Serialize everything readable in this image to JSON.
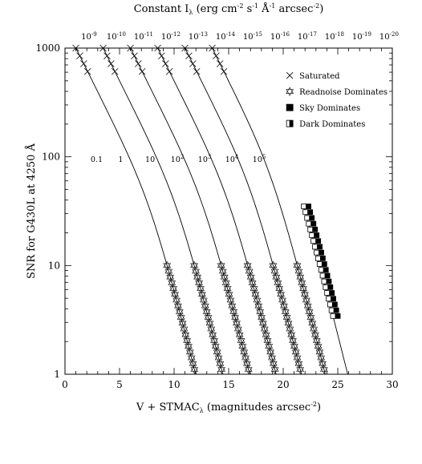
{
  "chart_data": {
    "type": "line",
    "title": "",
    "xlabel": "V + STMAC",
    "xlabel_sub": "λ",
    "xlabel_rest": " (magnitudes arcsec",
    "xlabel_sup": "-2",
    "xlabel_close": ")",
    "ylabel": "SNR for G430L at 4250 Å",
    "top_label_parts": [
      "Constant I",
      "λ",
      " (erg cm",
      "-2",
      " s",
      "-1",
      " Å",
      "-1",
      " arcsec",
      "-2",
      ")"
    ],
    "xlim": [
      0,
      30
    ],
    "ylim": [
      1,
      1000
    ],
    "yscale": "log",
    "x_ticks": [
      "0",
      "5",
      "10",
      "15",
      "20",
      "25",
      "30"
    ],
    "y_ticks": [
      "1",
      "10",
      "100",
      "1000"
    ],
    "top_ticks": [
      {
        "base": "10",
        "exp": "-9"
      },
      {
        "base": "10",
        "exp": "-10"
      },
      {
        "base": "10",
        "exp": "-11"
      },
      {
        "base": "10",
        "exp": "-12"
      },
      {
        "base": "10",
        "exp": "-13"
      },
      {
        "base": "10",
        "exp": "-14"
      },
      {
        "base": "10",
        "exp": "-15"
      },
      {
        "base": "10",
        "exp": "-16"
      },
      {
        "base": "10",
        "exp": "-17"
      },
      {
        "base": "10",
        "exp": "-18"
      },
      {
        "base": "10",
        "exp": "-19"
      },
      {
        "base": "10",
        "exp": "-20"
      }
    ],
    "top_tick_positions": [
      2.2,
      4.7,
      7.2,
      9.7,
      12.2,
      14.7,
      17.2,
      19.7,
      22.2,
      24.7,
      27.2,
      29.7
    ],
    "series": [
      {
        "label_base": "0.1",
        "label_exp": "",
        "label_x": 2.9,
        "label_snr": 90
      },
      {
        "label_base": "1",
        "label_exp": "",
        "label_x": 5.1,
        "label_snr": 90
      },
      {
        "label_base": "10",
        "label_exp": "",
        "label_x": 7.8,
        "label_snr": 90
      },
      {
        "label_base": "10",
        "label_exp": "2",
        "label_x": 10.3,
        "label_snr": 90
      },
      {
        "label_base": "10",
        "label_exp": "3",
        "label_x": 12.8,
        "label_snr": 90
      },
      {
        "label_base": "10",
        "label_exp": "4",
        "label_x": 15.3,
        "label_snr": 90
      },
      {
        "label_base": "10",
        "label_exp": "5",
        "label_x": 17.8,
        "label_snr": 90
      }
    ],
    "series_end_snr": [
      1000,
      1000,
      1000,
      1000,
      1000,
      1000,
      35
    ],
    "legend": {
      "placement": "top-right",
      "entries": [
        {
          "marker": "x",
          "label": "Saturated"
        },
        {
          "marker": "star",
          "label": "Readnoise Dominates"
        },
        {
          "marker": "filled-square",
          "label": "Sky Dominates"
        },
        {
          "marker": "half-square",
          "label": "Dark Dominates"
        }
      ]
    }
  }
}
